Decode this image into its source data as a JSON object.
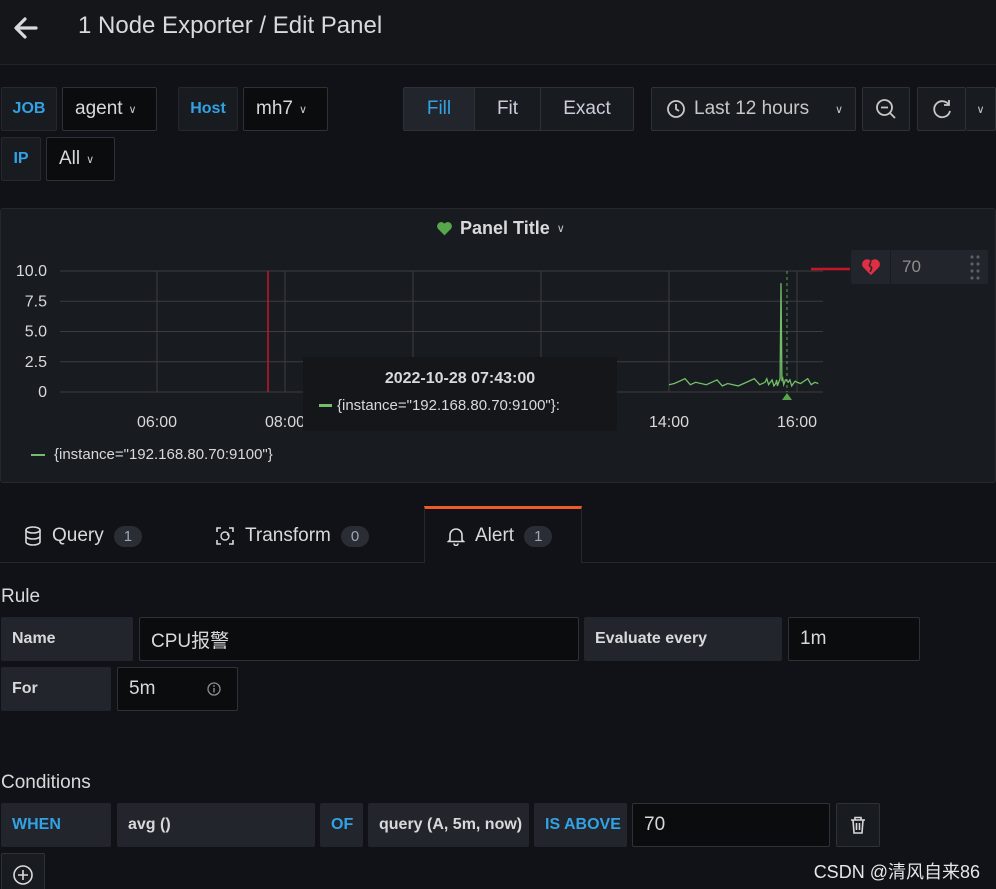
{
  "header": {
    "title": "1 Node Exporter / Edit Panel"
  },
  "variables": [
    {
      "label": "JOB",
      "value": "agent"
    },
    {
      "label": "Host",
      "value": "mh7"
    },
    {
      "label": "IP",
      "value": "All"
    }
  ],
  "view_modes": [
    "Fill",
    "Fit",
    "Exact"
  ],
  "view_mode_active": "Fill",
  "time_range": "Last 12 hours",
  "panel": {
    "title": "Panel Title",
    "threshold_value": "70",
    "legend": "{instance=\"192.168.80.70:9100\"}",
    "tooltip": {
      "time": "2022-10-28 07:43:00",
      "series": "{instance=\"192.168.80.70:9100\"}:"
    }
  },
  "chart_data": {
    "type": "line",
    "yticks": [
      "10.0",
      "7.5",
      "5.0",
      "2.5",
      "0"
    ],
    "ylim": [
      0,
      10
    ],
    "xticks": [
      "06:00",
      "08:00",
      "14:00",
      "16:00"
    ],
    "series": [
      {
        "name": "{instance=\"192.168.80.70:9100\"}",
        "color": "#73bf69",
        "x": [
          "14:00",
          "14:30",
          "15:00",
          "15:30",
          "15:40",
          "15:45",
          "15:50",
          "16:00",
          "16:20"
        ],
        "y": [
          0.6,
          0.7,
          0.6,
          0.8,
          0.7,
          9.0,
          1.0,
          0.8,
          0.7
        ]
      }
    ]
  },
  "tabs": [
    {
      "label": "Query",
      "count": "1"
    },
    {
      "label": "Transform",
      "count": "0"
    },
    {
      "label": "Alert",
      "count": "1"
    }
  ],
  "rule": {
    "heading": "Rule",
    "name_label": "Name",
    "name_value": "CPU报警",
    "evaluate_label": "Evaluate every",
    "evaluate_value": "1m",
    "for_label": "For",
    "for_value": "5m"
  },
  "conditions": {
    "heading": "Conditions",
    "when": "WHEN",
    "func": "avg ()",
    "of": "OF",
    "query": "query (A, 5m, now)",
    "is_above": "IS ABOVE",
    "threshold": "70"
  },
  "watermark": "CSDN @清风自来86",
  "colors": {
    "accent": "#33a2e5",
    "series": "#73bf69",
    "threshold": "#c4162a"
  }
}
